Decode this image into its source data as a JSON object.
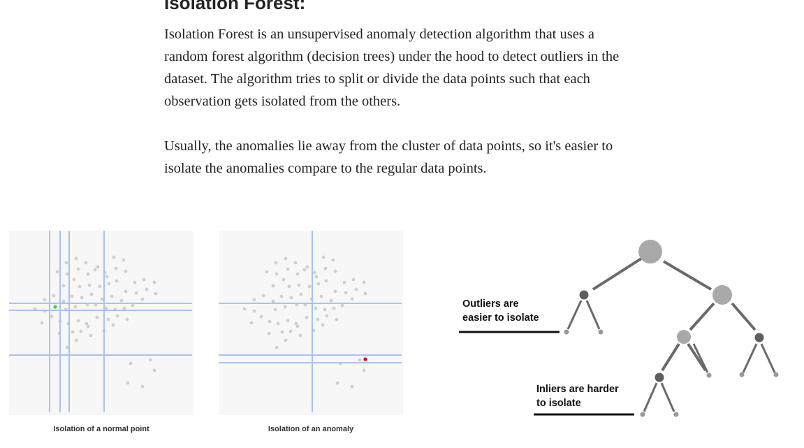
{
  "article": {
    "heading": "Isolation Forest:",
    "paragraphs": [
      "Isolation Forest is an unsupervised anomaly detection algorithm that uses a random forest algorithm (decision trees) under the hood to detect outliers in the dataset. The algorithm tries to split or divide the data points such that each observation gets isolated from the others.",
      "Usually, the anomalies lie away from the cluster of data points, so it's easier to isolate the anomalies compare to the regular data points."
    ]
  },
  "figure": {
    "panel_normal_caption": "Isolation of a normal point",
    "panel_anomaly_caption": "Isolation of an anomaly",
    "tree_outlier_label_line1": "Outliers are",
    "tree_outlier_label_line2": "easier to isolate",
    "tree_inlier_label_line1": "Inliers are harder",
    "tree_inlier_label_line2": "to isolate",
    "colors": {
      "split_line": "#a8c4ee",
      "point": "#cfcfcf",
      "normal_point": "#3fd14f",
      "anomaly_point": "#e0001b",
      "panel_bg": "#f7f7f7",
      "node_light": "#a9a9a9",
      "node_dark": "#5e5e5e"
    }
  }
}
